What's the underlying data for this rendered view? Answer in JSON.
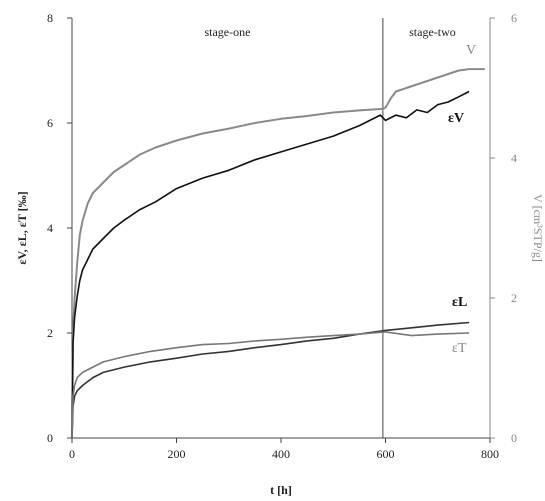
{
  "chart_data": {
    "type": "line",
    "x_axis": {
      "label": "t [h]",
      "min": 0,
      "max": 800,
      "ticks": [
        0,
        200,
        400,
        600,
        800
      ]
    },
    "y_left": {
      "label": "εV, εL, εT [‰]",
      "min": 0,
      "max": 8,
      "ticks": [
        0,
        2,
        4,
        6,
        8
      ]
    },
    "y_right": {
      "label": "V [cm³STP/g]",
      "min": 0,
      "max": 6,
      "ticks": [
        0,
        2,
        4,
        6
      ]
    },
    "stages": [
      {
        "label": "stage-one",
        "x_start": 0,
        "x_end": 595
      },
      {
        "label": "stage-two",
        "x_start": 595,
        "x_end": 800
      }
    ],
    "stage_boundary_x": 595,
    "series": [
      {
        "name": "V",
        "axis": "right",
        "color": "#8a8a8a",
        "x": [
          0,
          2,
          5,
          10,
          15,
          20,
          30,
          40,
          60,
          80,
          100,
          130,
          160,
          200,
          250,
          300,
          350,
          400,
          450,
          500,
          550,
          590,
          595,
          600,
          610,
          620,
          640,
          660,
          680,
          700,
          720,
          740,
          760,
          790
        ],
        "y": [
          0,
          1.5,
          2.0,
          2.5,
          2.9,
          3.1,
          3.35,
          3.5,
          3.65,
          3.8,
          3.9,
          4.05,
          4.15,
          4.25,
          4.35,
          4.42,
          4.5,
          4.56,
          4.6,
          4.65,
          4.68,
          4.7,
          4.7,
          4.72,
          4.85,
          4.95,
          5.0,
          5.05,
          5.1,
          5.15,
          5.2,
          5.25,
          5.27,
          5.27
        ]
      },
      {
        "name": "εV",
        "axis": "left",
        "color": "#111111",
        "x": [
          0,
          2,
          5,
          10,
          15,
          20,
          30,
          40,
          60,
          80,
          100,
          130,
          160,
          200,
          250,
          300,
          350,
          400,
          450,
          500,
          550,
          590,
          600,
          620,
          640,
          660,
          680,
          700,
          720,
          740,
          760
        ],
        "y": [
          0,
          1.8,
          2.3,
          2.7,
          3.0,
          3.2,
          3.4,
          3.6,
          3.8,
          4.0,
          4.15,
          4.35,
          4.5,
          4.75,
          4.95,
          5.1,
          5.3,
          5.45,
          5.6,
          5.75,
          5.95,
          6.15,
          6.05,
          6.15,
          6.1,
          6.25,
          6.2,
          6.35,
          6.4,
          6.5,
          6.6
        ]
      },
      {
        "name": "εL",
        "axis": "left",
        "color": "#333333",
        "x": [
          0,
          2,
          5,
          10,
          20,
          40,
          60,
          100,
          150,
          200,
          250,
          300,
          350,
          400,
          450,
          500,
          550,
          600,
          650,
          700,
          760
        ],
        "y": [
          0,
          0.6,
          0.8,
          0.9,
          1.0,
          1.15,
          1.25,
          1.35,
          1.45,
          1.52,
          1.6,
          1.65,
          1.72,
          1.78,
          1.85,
          1.9,
          1.98,
          2.05,
          2.1,
          2.15,
          2.2
        ]
      },
      {
        "name": "εT",
        "axis": "left",
        "color": "#777777",
        "x": [
          0,
          2,
          5,
          10,
          20,
          40,
          60,
          100,
          150,
          200,
          250,
          300,
          350,
          400,
          450,
          500,
          550,
          600,
          650,
          700,
          760
        ],
        "y": [
          0,
          0.8,
          1.0,
          1.15,
          1.25,
          1.35,
          1.45,
          1.55,
          1.65,
          1.72,
          1.78,
          1.8,
          1.85,
          1.88,
          1.92,
          1.95,
          1.98,
          2.02,
          1.95,
          1.98,
          2.0
        ]
      }
    ],
    "series_labels": {
      "V": "V",
      "eV": "εV",
      "eL": "εL",
      "eT": "εT"
    }
  }
}
